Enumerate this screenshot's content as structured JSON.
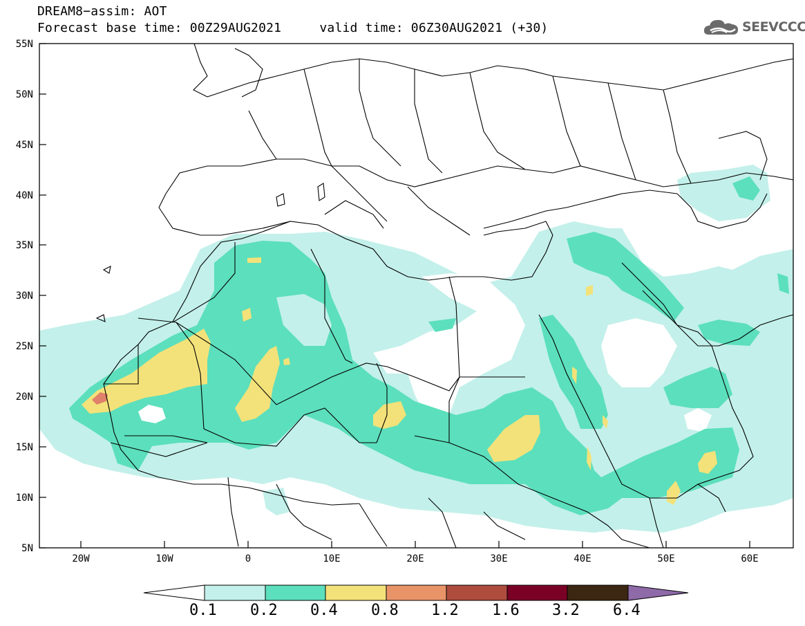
{
  "header": {
    "title_line1": "DREAM8−assim: AOT",
    "title_line2": "Forecast base time: 00Z29AUG2021     valid time: 06Z30AUG2021 (+30)"
  },
  "logo": {
    "text": "SEEVCCC",
    "icon": "cloud-icon"
  },
  "map": {
    "lon_labels": [
      "20W",
      "10W",
      "0",
      "10E",
      "20E",
      "30E",
      "40E",
      "50E",
      "60E"
    ],
    "lat_labels": [
      "55N",
      "50N",
      "45N",
      "40N",
      "35N",
      "30N",
      "25N",
      "20N",
      "15N",
      "10N",
      "5N"
    ]
  },
  "colorbar": {
    "labels": [
      "0.1",
      "0.2",
      "0.4",
      "0.8",
      "1.2",
      "1.6",
      "3.2",
      "6.4"
    ],
    "colors": [
      "#ffffff",
      "#c3f0ea",
      "#5cdfbc",
      "#f3e27a",
      "#e89468",
      "#ae4d3e",
      "#7a0026",
      "#3b2712",
      "#8e6aa8"
    ]
  },
  "colors": {
    "level1": "#c3f0ea",
    "level2": "#5cdfbc",
    "level3": "#f3e27a",
    "level4": "#e0826a"
  }
}
